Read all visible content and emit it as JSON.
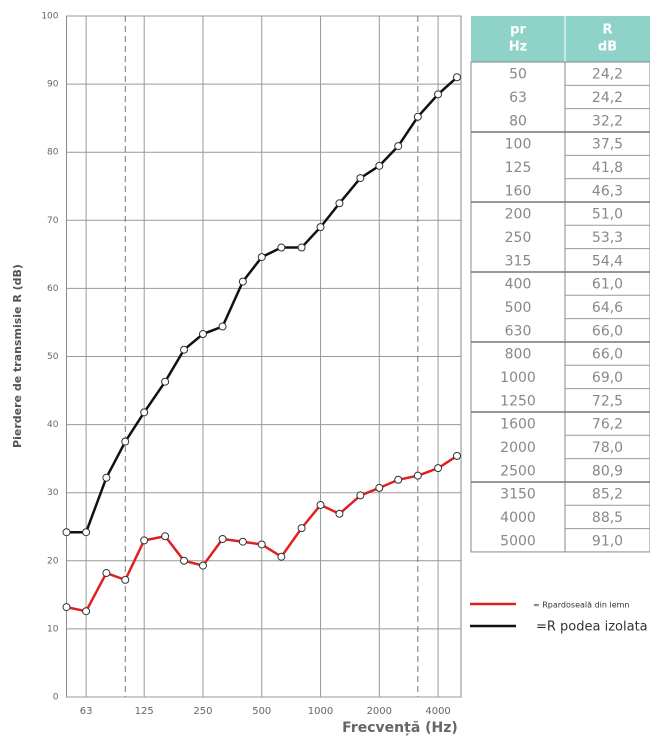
{
  "chart_data": {
    "type": "line",
    "xlabel": "Frecvență (Hz)",
    "ylabel": "Pierdere de transmisie R (dB)",
    "x": [
      50,
      63,
      80,
      100,
      125,
      160,
      200,
      250,
      315,
      400,
      500,
      630,
      800,
      1000,
      1250,
      1600,
      2000,
      2500,
      3150,
      4000,
      5000
    ],
    "xscale": "log",
    "xlim": [
      50,
      5000
    ],
    "xticks": [
      63,
      125,
      250,
      500,
      1000,
      2000,
      4000
    ],
    "dashed_x": [
      100,
      3150
    ],
    "ylim": [
      0,
      100
    ],
    "yticks": [
      0,
      10,
      20,
      30,
      40,
      50,
      60,
      70,
      80,
      90,
      100
    ],
    "grid": true,
    "legend": "right",
    "series": [
      {
        "name": "= Rpardoseală din lemn",
        "color": "#e02020",
        "values": [
          13.2,
          12.6,
          18.2,
          17.2,
          23.0,
          23.6,
          20.0,
          19.3,
          23.2,
          22.8,
          22.4,
          20.6,
          24.8,
          28.2,
          26.9,
          29.6,
          30.7,
          31.9,
          32.5,
          33.6,
          35.4
        ]
      },
      {
        "name": "=R podea izolata",
        "color": "#111111",
        "values": [
          24.2,
          24.2,
          32.2,
          37.5,
          41.8,
          46.3,
          51.0,
          53.3,
          54.4,
          61.0,
          64.6,
          66.0,
          66.0,
          69.0,
          72.5,
          76.2,
          78.0,
          80.9,
          85.2,
          88.5,
          91.0
        ]
      }
    ]
  },
  "table": {
    "header": [
      [
        "pr",
        "Hz"
      ],
      [
        "R",
        "dB"
      ]
    ],
    "rows": [
      [
        "50",
        "24,2"
      ],
      [
        "63",
        "24,2"
      ],
      [
        "80",
        "32,2"
      ],
      [
        "100",
        "37,5"
      ],
      [
        "125",
        "41,8"
      ],
      [
        "160",
        "46,3"
      ],
      [
        "200",
        "51,0"
      ],
      [
        "250",
        "53,3"
      ],
      [
        "315",
        "54,4"
      ],
      [
        "400",
        "61,0"
      ],
      [
        "500",
        "64,6"
      ],
      [
        "630",
        "66,0"
      ],
      [
        "800",
        "66,0"
      ],
      [
        "1000",
        "69,0"
      ],
      [
        "1250",
        "72,5"
      ],
      [
        "1600",
        "76,2"
      ],
      [
        "2000",
        "78,0"
      ],
      [
        "2500",
        "80,9"
      ],
      [
        "3150",
        "85,2"
      ],
      [
        "4000",
        "88,5"
      ],
      [
        "5000",
        "91,0"
      ]
    ]
  }
}
